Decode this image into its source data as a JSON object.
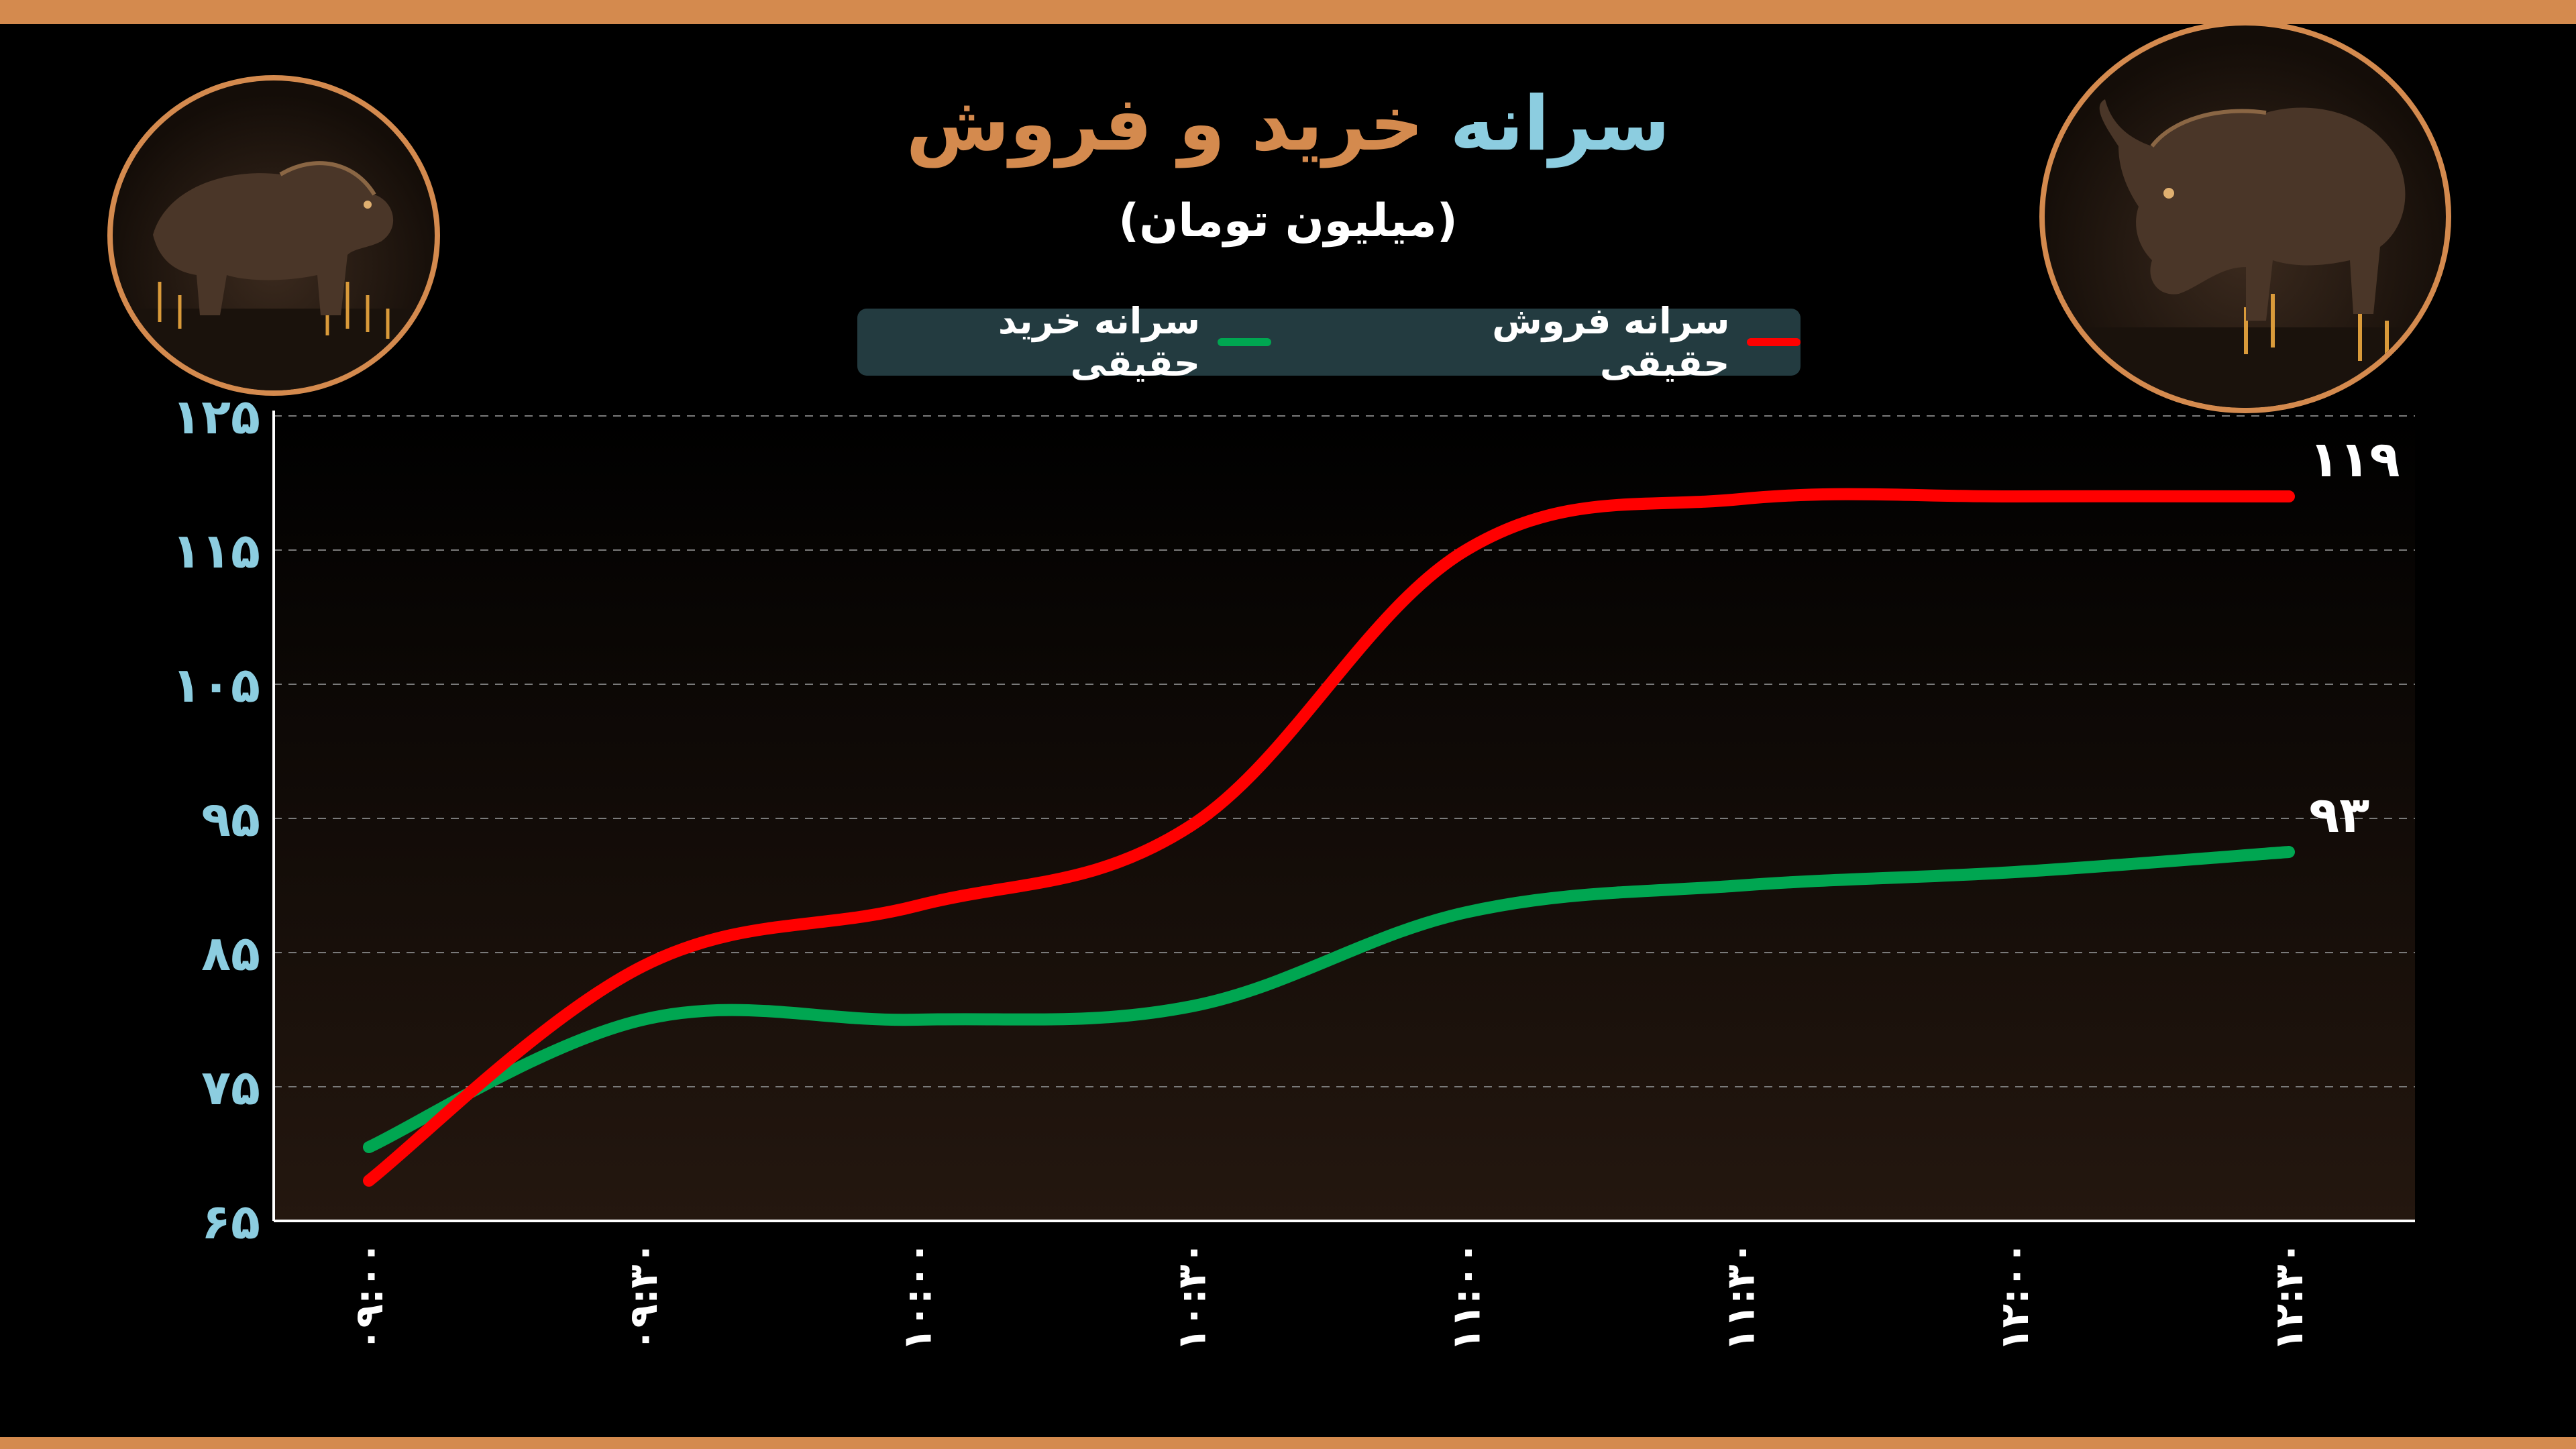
{
  "header": {
    "title_part1": "سرانه",
    "title_part2": "خرید و فروش",
    "subtitle": "(میلیون تومان)"
  },
  "legend": {
    "sell_label": "سرانه فروش حقیقی",
    "buy_label": "سرانه خرید حقیقی"
  },
  "icons": {
    "left": "bear-icon",
    "right": "bull-icon"
  },
  "colors": {
    "frame": "#d48a4e",
    "accent_blue": "#8ccde0",
    "sell": "#ff0000",
    "buy": "#00a651",
    "legend_bg": "#233b40"
  },
  "chart_data": {
    "type": "line",
    "x": [
      "۰۹:۰۰",
      "۰۹:۳۰",
      "۱۰:۰۰",
      "۱۰:۳۰",
      "۱۱:۰۰",
      "۱۱:۳۰",
      "۱۲:۰۰",
      "۱۲:۳۰"
    ],
    "y_ticks": [
      "۶۵",
      "۷۵",
      "۸۵",
      "۹۵",
      "۱۰۵",
      "۱۱۵",
      "۱۲۵"
    ],
    "ylim": [
      65,
      125
    ],
    "grid": "horizontal dashed",
    "legend_position": "top-center",
    "series": [
      {
        "name": "سرانه فروش حقیقی",
        "color": "#ff0000",
        "values": [
          68,
          84,
          88.5,
          94.5,
          115,
          118.8,
          119,
          119
        ],
        "end_label": "۱۱۹"
      },
      {
        "name": "سرانه خرید حقیقی",
        "color": "#00a651",
        "values": [
          70.5,
          80,
          80,
          81,
          88,
          90,
          91,
          92.5
        ],
        "end_label": "۹۳"
      }
    ]
  }
}
